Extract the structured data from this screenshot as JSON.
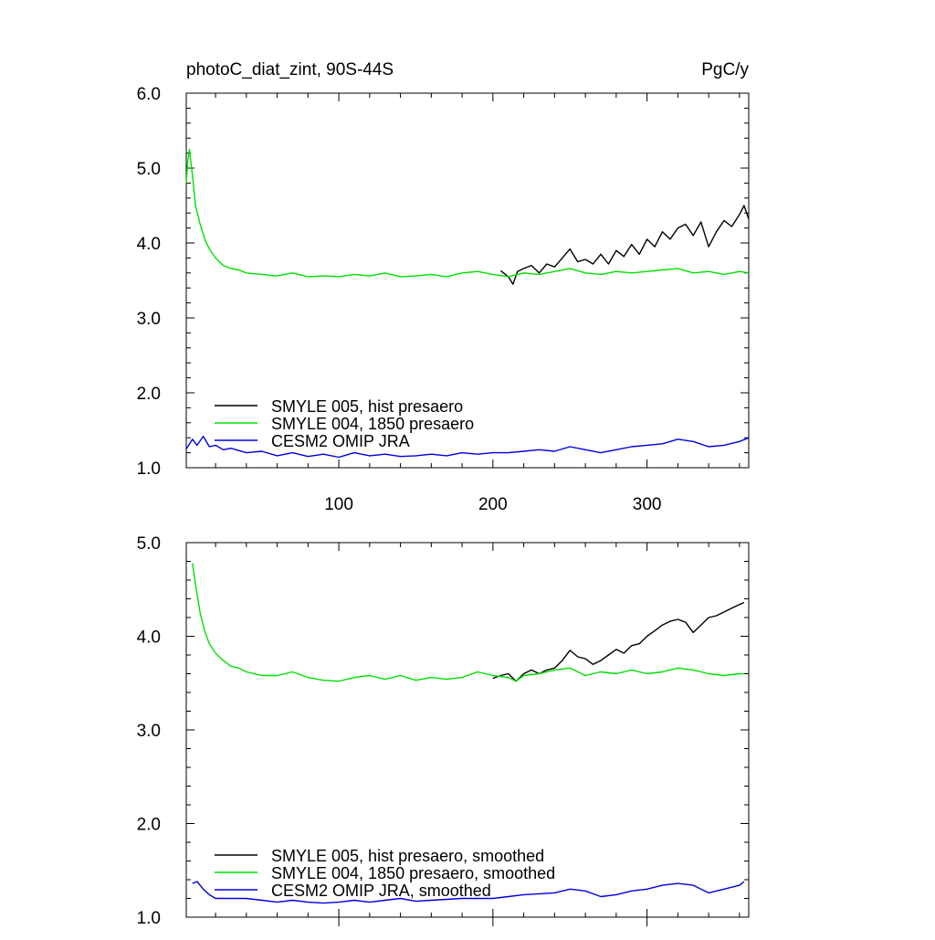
{
  "chart_data": [
    {
      "type": "line",
      "title": "photoC_diat_zint, 90S-44S",
      "units": "PgC/y",
      "xlim": [
        1,
        366
      ],
      "ylim": [
        1.0,
        6.0
      ],
      "xticks": [
        100,
        200,
        300
      ],
      "xtick_labels": [
        "100",
        "200",
        "300"
      ],
      "yticks": [
        1.0,
        2.0,
        3.0,
        4.0,
        5.0,
        6.0
      ],
      "ytick_labels": [
        "1.0",
        "2.0",
        "3.0",
        "4.0",
        "5.0",
        "6.0"
      ],
      "legend_position": "bottom-left",
      "series": [
        {
          "name": "SMYLE 005, hist presaero",
          "color": "#000000",
          "x": [
            205,
            210,
            213,
            216,
            220,
            225,
            230,
            235,
            240,
            245,
            250,
            255,
            260,
            265,
            270,
            275,
            280,
            285,
            290,
            295,
            300,
            305,
            310,
            315,
            320,
            325,
            330,
            335,
            340,
            345,
            350,
            355,
            360,
            363,
            366
          ],
          "y": [
            3.63,
            3.55,
            3.45,
            3.62,
            3.66,
            3.7,
            3.6,
            3.72,
            3.68,
            3.8,
            3.92,
            3.75,
            3.78,
            3.72,
            3.85,
            3.72,
            3.9,
            3.82,
            3.98,
            3.85,
            4.05,
            3.95,
            4.15,
            4.05,
            4.2,
            4.25,
            4.1,
            4.28,
            3.95,
            4.15,
            4.3,
            4.22,
            4.38,
            4.5,
            4.32
          ]
        },
        {
          "name": "SMYLE 004, 1850 presaero",
          "color": "#00e000",
          "x": [
            1,
            2,
            3,
            5,
            7,
            10,
            13,
            16,
            20,
            25,
            30,
            35,
            40,
            50,
            60,
            70,
            80,
            90,
            100,
            110,
            120,
            130,
            140,
            150,
            160,
            170,
            180,
            190,
            200,
            210,
            220,
            230,
            240,
            250,
            260,
            270,
            280,
            290,
            300,
            310,
            320,
            330,
            340,
            350,
            360,
            366
          ],
          "y": [
            4.8,
            5.1,
            5.25,
            4.9,
            4.5,
            4.25,
            4.05,
            3.92,
            3.8,
            3.7,
            3.66,
            3.64,
            3.6,
            3.58,
            3.56,
            3.6,
            3.55,
            3.56,
            3.55,
            3.58,
            3.56,
            3.6,
            3.55,
            3.56,
            3.58,
            3.55,
            3.6,
            3.62,
            3.58,
            3.55,
            3.6,
            3.58,
            3.62,
            3.66,
            3.6,
            3.58,
            3.62,
            3.6,
            3.62,
            3.64,
            3.66,
            3.6,
            3.62,
            3.58,
            3.62,
            3.6
          ]
        },
        {
          "name": "CESM2 OMIP JRA",
          "color": "#0000e0",
          "x": [
            1,
            5,
            8,
            12,
            16,
            20,
            25,
            30,
            40,
            50,
            60,
            70,
            80,
            90,
            100,
            110,
            120,
            130,
            140,
            150,
            160,
            170,
            180,
            190,
            200,
            210,
            220,
            230,
            240,
            250,
            260,
            270,
            280,
            290,
            300,
            310,
            320,
            330,
            340,
            350,
            360,
            366
          ],
          "y": [
            1.25,
            1.38,
            1.3,
            1.42,
            1.28,
            1.3,
            1.24,
            1.26,
            1.2,
            1.22,
            1.16,
            1.2,
            1.15,
            1.18,
            1.14,
            1.2,
            1.16,
            1.18,
            1.15,
            1.16,
            1.18,
            1.16,
            1.2,
            1.18,
            1.2,
            1.2,
            1.22,
            1.24,
            1.22,
            1.28,
            1.24,
            1.2,
            1.24,
            1.28,
            1.3,
            1.32,
            1.38,
            1.35,
            1.28,
            1.3,
            1.35,
            1.4
          ]
        }
      ]
    },
    {
      "type": "line",
      "xlim": [
        1,
        366
      ],
      "ylim": [
        1.0,
        5.0
      ],
      "xticks": [
        100,
        200,
        300
      ],
      "yticks": [
        1.0,
        2.0,
        3.0,
        4.0,
        5.0
      ],
      "ytick_labels": [
        "1.0",
        "2.0",
        "3.0",
        "4.0",
        "5.0"
      ],
      "legend_position": "bottom-left",
      "series": [
        {
          "name": "SMYLE 005, hist presaero, smoothed",
          "color": "#000000",
          "x": [
            200,
            205,
            210,
            215,
            220,
            225,
            230,
            235,
            240,
            245,
            250,
            255,
            260,
            265,
            270,
            275,
            280,
            285,
            290,
            295,
            300,
            305,
            310,
            315,
            320,
            325,
            330,
            335,
            340,
            345,
            350,
            355,
            360,
            363
          ],
          "y": [
            3.55,
            3.58,
            3.6,
            3.52,
            3.6,
            3.64,
            3.6,
            3.64,
            3.66,
            3.74,
            3.85,
            3.78,
            3.76,
            3.7,
            3.74,
            3.8,
            3.86,
            3.82,
            3.9,
            3.92,
            4.0,
            4.06,
            4.12,
            4.16,
            4.18,
            4.15,
            4.04,
            4.12,
            4.2,
            4.22,
            4.26,
            4.3,
            4.34,
            4.36
          ]
        },
        {
          "name": "SMYLE 004, 1850 presaero, smoothed",
          "color": "#00e000",
          "x": [
            5,
            7,
            10,
            13,
            16,
            20,
            25,
            30,
            35,
            40,
            50,
            60,
            70,
            80,
            90,
            100,
            110,
            120,
            130,
            140,
            150,
            160,
            170,
            180,
            190,
            200,
            210,
            215,
            220,
            230,
            240,
            250,
            260,
            270,
            280,
            290,
            300,
            310,
            320,
            330,
            340,
            350,
            360,
            363
          ],
          "y": [
            4.78,
            4.55,
            4.25,
            4.05,
            3.92,
            3.82,
            3.74,
            3.68,
            3.66,
            3.62,
            3.58,
            3.58,
            3.62,
            3.56,
            3.53,
            3.52,
            3.56,
            3.58,
            3.54,
            3.58,
            3.53,
            3.56,
            3.54,
            3.56,
            3.62,
            3.58,
            3.56,
            3.52,
            3.58,
            3.6,
            3.64,
            3.66,
            3.58,
            3.62,
            3.6,
            3.64,
            3.6,
            3.62,
            3.66,
            3.64,
            3.6,
            3.58,
            3.6,
            3.6
          ]
        },
        {
          "name": "CESM2 OMIP JRA, smoothed",
          "color": "#0000e0",
          "x": [
            5,
            8,
            12,
            16,
            20,
            25,
            30,
            40,
            50,
            60,
            70,
            80,
            90,
            100,
            110,
            120,
            130,
            140,
            150,
            160,
            170,
            180,
            190,
            200,
            210,
            220,
            230,
            240,
            250,
            260,
            270,
            280,
            290,
            300,
            310,
            320,
            330,
            340,
            350,
            360,
            363
          ],
          "y": [
            1.36,
            1.38,
            1.3,
            1.24,
            1.2,
            1.2,
            1.2,
            1.2,
            1.18,
            1.16,
            1.18,
            1.16,
            1.15,
            1.16,
            1.18,
            1.16,
            1.18,
            1.2,
            1.17,
            1.18,
            1.19,
            1.2,
            1.2,
            1.2,
            1.22,
            1.24,
            1.25,
            1.26,
            1.3,
            1.28,
            1.22,
            1.24,
            1.28,
            1.3,
            1.34,
            1.36,
            1.34,
            1.26,
            1.3,
            1.34,
            1.38
          ]
        }
      ]
    }
  ]
}
